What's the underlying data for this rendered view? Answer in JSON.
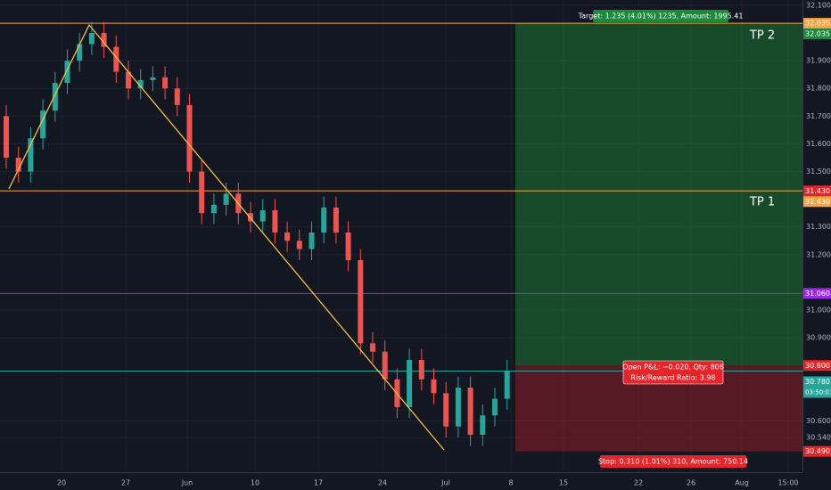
{
  "chart_data": {
    "type": "candlestick",
    "categories": [
      "20",
      "27",
      "Jun",
      "10",
      "17",
      "24",
      "Jul",
      "8",
      "15",
      "22",
      "26",
      "Aug",
      "15:00"
    ],
    "ylim": [
      30.415,
      32.119
    ],
    "yticks": [
      {
        "value": 32.1,
        "label": "32.100"
      },
      {
        "value": 31.9,
        "label": "31.900"
      },
      {
        "value": 31.8,
        "label": "31.800"
      },
      {
        "value": 31.7,
        "label": "31.700"
      },
      {
        "value": 31.6,
        "label": "31.600"
      },
      {
        "value": 31.5,
        "label": "31.500"
      },
      {
        "value": 31.3,
        "label": "31.300"
      },
      {
        "value": 31.2,
        "label": "31.200"
      },
      {
        "value": 31.0,
        "label": "31.000"
      },
      {
        "value": 30.9,
        "label": "30.900"
      },
      {
        "value": 30.6,
        "label": "30.600"
      },
      {
        "value": 30.54,
        "label": "30.540"
      }
    ],
    "grid": true,
    "up_color": "#26a69a",
    "down_color": "#ef5350",
    "open": [
      31.7,
      31.55,
      31.5,
      31.62,
      31.72,
      31.82,
      31.9,
      31.96,
      32.0,
      31.95,
      31.86,
      31.8,
      31.83,
      31.84,
      31.8,
      31.74,
      31.5,
      31.35,
      31.38,
      31.42,
      31.35,
      31.32,
      31.36,
      31.28,
      31.25,
      31.22,
      31.28,
      31.37,
      31.28,
      31.18,
      30.88,
      30.85,
      30.75,
      30.65,
      30.82,
      30.75,
      30.7,
      30.58,
      30.72,
      30.55,
      30.62,
      30.68
    ],
    "high": [
      31.74,
      31.59,
      31.66,
      31.76,
      31.86,
      31.94,
      32.0,
      32.04,
      32.04,
      31.99,
      31.9,
      31.87,
      31.88,
      31.88,
      31.84,
      31.78,
      31.54,
      31.42,
      31.46,
      31.46,
      31.39,
      31.4,
      31.4,
      31.32,
      31.29,
      31.32,
      31.41,
      31.41,
      31.32,
      31.22,
      30.92,
      30.89,
      30.79,
      30.86,
      30.86,
      30.79,
      30.74,
      30.76,
      30.76,
      30.66,
      30.72,
      30.82
    ],
    "low": [
      31.51,
      31.46,
      31.46,
      31.58,
      31.68,
      31.78,
      31.86,
      31.92,
      31.91,
      31.82,
      31.76,
      31.76,
      31.79,
      31.76,
      31.7,
      31.46,
      31.31,
      31.31,
      31.34,
      31.31,
      31.28,
      31.28,
      31.24,
      31.21,
      31.18,
      31.18,
      31.24,
      31.24,
      31.14,
      30.84,
      30.81,
      30.71,
      30.61,
      30.61,
      30.71,
      30.66,
      30.54,
      30.54,
      30.51,
      30.51,
      30.58,
      30.64
    ],
    "close": [
      31.55,
      31.5,
      31.62,
      31.72,
      31.82,
      31.9,
      31.96,
      32.0,
      31.95,
      31.86,
      31.8,
      31.83,
      31.84,
      31.8,
      31.74,
      31.5,
      31.35,
      31.38,
      31.42,
      31.35,
      31.32,
      31.36,
      31.28,
      31.25,
      31.22,
      31.28,
      31.37,
      31.28,
      31.18,
      30.88,
      30.85,
      30.75,
      30.65,
      30.82,
      30.75,
      30.7,
      30.58,
      30.72,
      30.55,
      30.62,
      30.68,
      30.78
    ],
    "lines": [
      {
        "value": 32.035,
        "color": "#f7a440"
      },
      {
        "value": 31.43,
        "color": "#f7a440"
      },
      {
        "value": 31.06,
        "color": "#9c27f0"
      },
      {
        "value": 30.78,
        "color": "#26a69a"
      }
    ],
    "price_labels": [
      {
        "value": 32.035,
        "label": "32.035",
        "color": "#f7a440"
      },
      {
        "value": 32.035,
        "label": "32.035",
        "color": "#1b8a3a"
      },
      {
        "value": 31.43,
        "label": "31.430",
        "color": "#e5252a"
      },
      {
        "value": 31.43,
        "label": "31.430",
        "color": "#f7a440"
      },
      {
        "value": 31.06,
        "label": "31.060",
        "color": "#9c27f0"
      },
      {
        "value": 30.8,
        "label": "30.800",
        "color": "#e5252a"
      },
      {
        "value": 30.78,
        "label": "30.780",
        "color": "#26a69a"
      },
      {
        "value": 30.49,
        "label": "30.490",
        "color": "#e5252a"
      }
    ],
    "countdown": "03:50:01",
    "position": {
      "target": 32.035,
      "entry": 30.8,
      "stop": 30.49
    },
    "target_text": "Target: 1.235 (4.01%) 1235, Amount: 1995.41",
    "pnl_text": "Open P&L: −0.020, Qty: 806",
    "rr_text": "Risk/Reward Ratio: 3.98",
    "stop_text": "Stop: 0.310 (1.01%) 310, Amount: 750.14",
    "tp2": "TP 2",
    "tp1": "TP 1"
  }
}
